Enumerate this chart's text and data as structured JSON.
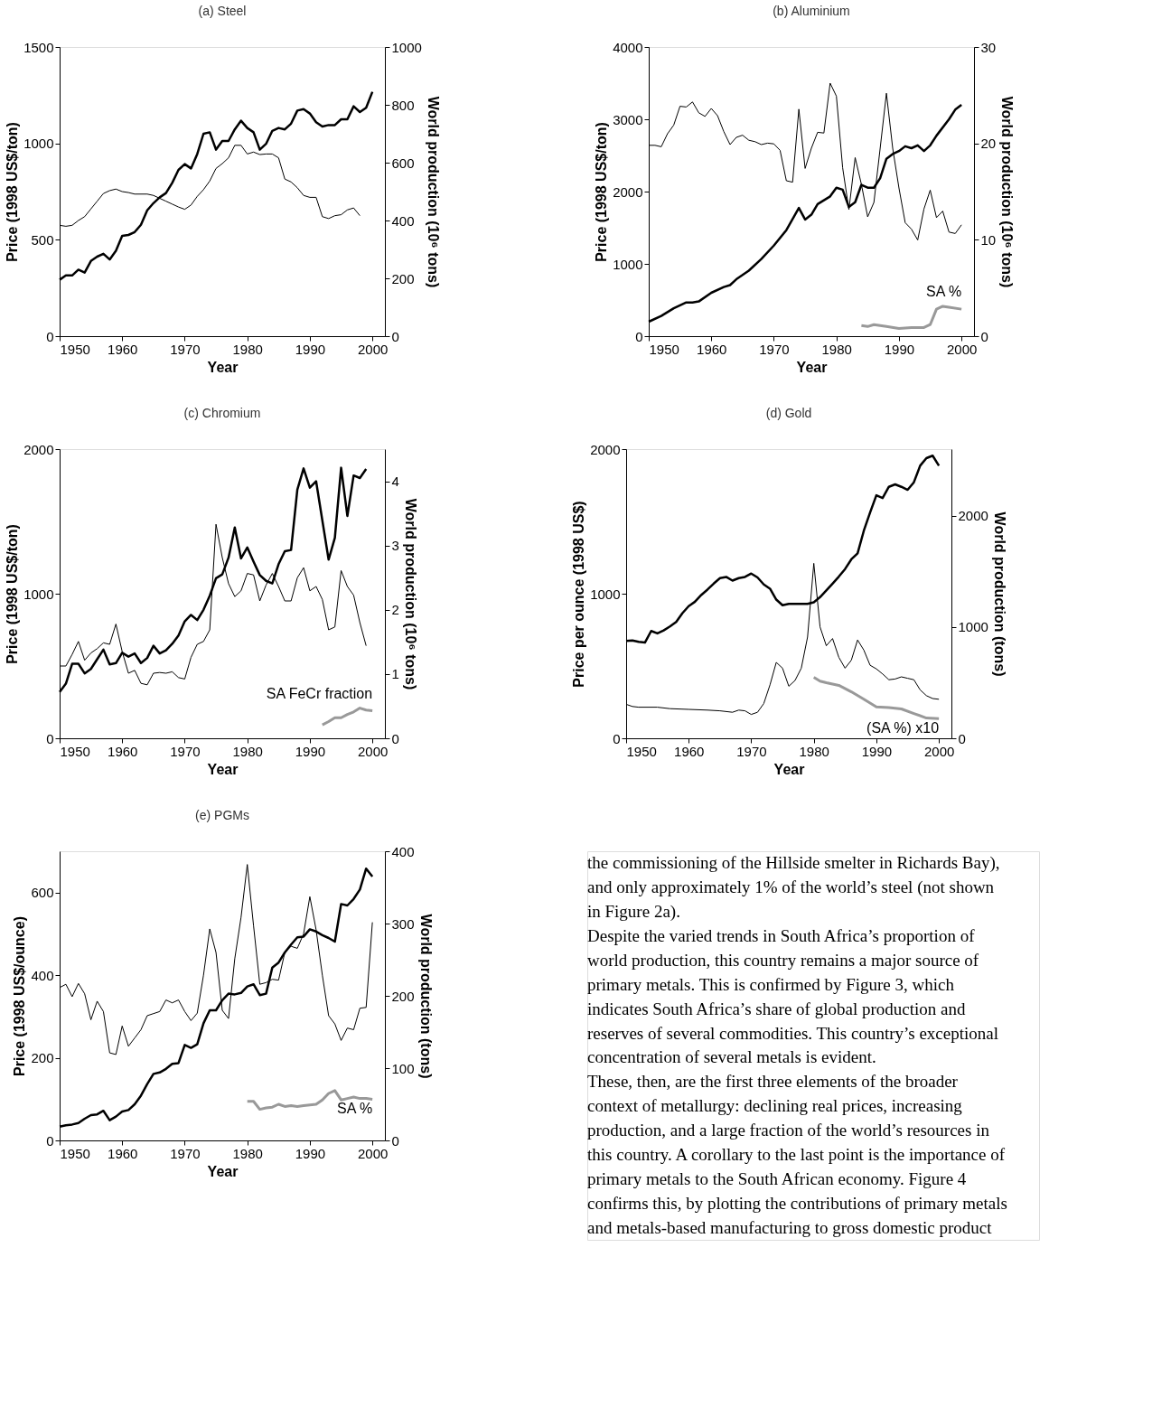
{
  "chart_data": [
    {
      "type": "line",
      "title": "(a) Steel",
      "xlabel": "Year",
      "ylabel": "Price (1998 US$/ton)",
      "y2label": "World production (10⁶ tons)",
      "xlim": [
        1950,
        2002
      ],
      "xticks": [
        1950,
        1960,
        1970,
        1980,
        1990,
        2000
      ],
      "ylim": [
        0,
        1500
      ],
      "yticks": [
        0,
        500,
        1000,
        1500
      ],
      "y2lim": [
        0,
        1000
      ],
      "y2ticks": [
        0,
        200,
        400,
        600,
        800,
        1000
      ],
      "series": [
        {
          "color": "#000000",
          "x": [
            1950,
            1951,
            1952,
            1953,
            1954,
            1955,
            1956,
            1957,
            1958,
            1959,
            1960,
            1961,
            1962,
            1963,
            1964,
            1965,
            1966,
            1967,
            1968,
            1969,
            1970,
            1971,
            1972,
            1973,
            1974,
            1975,
            1976,
            1977,
            1978,
            1979,
            1980,
            1981,
            1982,
            1983,
            1984,
            1985,
            1986,
            1987,
            1988,
            1989,
            1990,
            1991,
            1992,
            1993,
            1994,
            1995,
            1996,
            1997,
            1998
          ],
          "values": [
            575,
            570,
            575,
            600,
            620,
            660,
            700,
            740,
            755,
            763,
            750,
            745,
            737,
            737,
            737,
            730,
            715,
            700,
            685,
            670,
            658,
            680,
            725,
            760,
            805,
            870,
            895,
            925,
            990,
            990,
            945,
            955,
            942,
            945,
            945,
            925,
            815,
            800,
            770,
            730,
            720,
            720,
            620,
            610,
            625,
            630,
            655,
            665,
            625
          ]
        },
        {
          "color": "#000000",
          "axis": "y2",
          "x": [
            1950,
            1951,
            1952,
            1953,
            1954,
            1955,
            1956,
            1957,
            1958,
            1959,
            1960,
            1961,
            1962,
            1963,
            1964,
            1965,
            1966,
            1967,
            1968,
            1969,
            1970,
            1971,
            1972,
            1973,
            1974,
            1975,
            1976,
            1977,
            1978,
            1979,
            1980,
            1981,
            1982,
            1983,
            1984,
            1985,
            1986,
            1987,
            1988,
            1989,
            1990,
            1991,
            1992,
            1993,
            1994,
            1995,
            1996,
            1997,
            1998,
            1999,
            2000
          ],
          "values": [
            195,
            210,
            210,
            230,
            220,
            260,
            275,
            285,
            265,
            295,
            347,
            350,
            360,
            385,
            435,
            460,
            480,
            495,
            530,
            575,
            595,
            580,
            630,
            700,
            705,
            645,
            675,
            675,
            715,
            745,
            720,
            705,
            645,
            665,
            710,
            720,
            715,
            735,
            780,
            785,
            770,
            740,
            725,
            730,
            730,
            750,
            750,
            795,
            775,
            790,
            845
          ]
        }
      ]
    },
    {
      "type": "line",
      "title": "(b) Aluminium",
      "xlabel": "Year",
      "ylabel": "Price (1998 US$/ton)",
      "y2label": "World production (10⁶ tons)",
      "xlim": [
        1950,
        2002
      ],
      "xticks": [
        1950,
        1960,
        1970,
        1980,
        1990,
        2000
      ],
      "ylim": [
        0,
        4000
      ],
      "yticks": [
        0,
        1000,
        2000,
        3000,
        4000
      ],
      "y2lim": [
        0,
        30
      ],
      "y2ticks": [
        0,
        10,
        20,
        30
      ],
      "series": [
        {
          "color": "#000000",
          "x": [
            1950,
            1951,
            1952,
            1953,
            1954,
            1955,
            1956,
            1957,
            1958,
            1959,
            1960,
            1961,
            1962,
            1963,
            1964,
            1965,
            1966,
            1967,
            1968,
            1969,
            1970,
            1971,
            1972,
            1973,
            1974,
            1975,
            1976,
            1977,
            1978,
            1979,
            1980,
            1981,
            1982,
            1983,
            1984,
            1985,
            1986,
            1987,
            1988,
            1989,
            1990,
            1991,
            1992,
            1993,
            1994,
            1995,
            1996,
            1997,
            1998,
            1999,
            2000
          ],
          "values": [
            2640,
            2640,
            2620,
            2800,
            2920,
            3180,
            3170,
            3240,
            3090,
            3040,
            3150,
            3050,
            2830,
            2650,
            2750,
            2780,
            2710,
            2690,
            2650,
            2670,
            2660,
            2570,
            2150,
            2130,
            3140,
            2320,
            2600,
            2820,
            2810,
            3500,
            3320,
            2330,
            1750,
            2470,
            2100,
            1650,
            1850,
            2600,
            3360,
            2600,
            2050,
            1570,
            1480,
            1330,
            1760,
            2020,
            1640,
            1730,
            1440,
            1420,
            1540
          ]
        },
        {
          "color": "#000000",
          "axis": "y2",
          "x": [
            1950,
            1952,
            1954,
            1956,
            1957,
            1958,
            1960,
            1962,
            1963,
            1964,
            1966,
            1968,
            1970,
            1972,
            1974,
            1975,
            1976,
            1977,
            1978,
            1979,
            1980,
            1981,
            1982,
            1983,
            1984,
            1985,
            1986,
            1987,
            1988,
            1989,
            1990,
            1991,
            1992,
            1993,
            1994,
            1995,
            1996,
            1998,
            1999,
            2000
          ],
          "values": [
            1.5,
            2.1,
            2.9,
            3.5,
            3.5,
            3.6,
            4.5,
            5.1,
            5.3,
            5.9,
            6.8,
            8.0,
            9.4,
            11.0,
            13.3,
            12.1,
            12.6,
            13.7,
            14.1,
            14.5,
            15.4,
            15.2,
            13.4,
            13.9,
            15.7,
            15.4,
            15.4,
            16.4,
            18.4,
            18.9,
            19.2,
            19.7,
            19.5,
            19.8,
            19.2,
            19.8,
            20.8,
            22.5,
            23.5,
            24.0
          ]
        },
        {
          "name": "SA %",
          "color": "#999999",
          "axis": "y2",
          "x": [
            1984,
            1985,
            1986,
            1988,
            1990,
            1992,
            1994,
            1995,
            1996,
            1997,
            1998,
            2000
          ],
          "values": [
            1.1,
            1.0,
            1.2,
            1.0,
            0.8,
            0.9,
            0.9,
            1.2,
            2.8,
            3.1,
            3.0,
            2.8
          ]
        }
      ]
    },
    {
      "type": "line",
      "title": "(c) Chromium",
      "xlabel": "Year",
      "ylabel": "Price (1998 US$/ton)",
      "y2label": "World production (10⁶ tons)",
      "xlim": [
        1950,
        2002
      ],
      "xticks": [
        1950,
        1960,
        1970,
        1980,
        1990,
        2000
      ],
      "ylim": [
        0,
        2000
      ],
      "yticks": [
        0,
        1000,
        2000
      ],
      "y2lim": [
        0,
        4.5
      ],
      "y2ticks": [
        0,
        1,
        2,
        3,
        4
      ],
      "series": [
        {
          "color": "#000000",
          "x": [
            1950,
            1951,
            1952,
            1953,
            1954,
            1955,
            1956,
            1957,
            1958,
            1959,
            1960,
            1961,
            1962,
            1963,
            1964,
            1965,
            1966,
            1967,
            1968,
            1969,
            1970,
            1971,
            1972,
            1973,
            1974,
            1975,
            1976,
            1977,
            1978,
            1979,
            1980,
            1981,
            1982,
            1983,
            1984,
            1985,
            1986,
            1987,
            1988,
            1989,
            1990,
            1991,
            1992,
            1993,
            1994,
            1995,
            1996,
            1997,
            1998,
            1999
          ],
          "values": [
            500,
            500,
            580,
            670,
            540,
            590,
            620,
            660,
            650,
            790,
            600,
            450,
            470,
            380,
            370,
            450,
            455,
            450,
            460,
            420,
            410,
            560,
            650,
            670,
            750,
            1480,
            1250,
            1070,
            980,
            1020,
            1140,
            1130,
            950,
            1060,
            1140,
            1050,
            950,
            950,
            1110,
            1180,
            1020,
            1050,
            960,
            750,
            770,
            1160,
            1050,
            990,
            800,
            640
          ]
        },
        {
          "color": "#000000",
          "axis": "y2",
          "x": [
            1950,
            1951,
            1952,
            1953,
            1954,
            1955,
            1956,
            1957,
            1958,
            1959,
            1960,
            1961,
            1962,
            1963,
            1964,
            1965,
            1966,
            1967,
            1968,
            1969,
            1970,
            1971,
            1972,
            1973,
            1974,
            1975,
            1976,
            1977,
            1978,
            1979,
            1980,
            1981,
            1982,
            1983,
            1984,
            1985,
            1986,
            1987,
            1988,
            1989,
            1990,
            1991,
            1992,
            1993,
            1994,
            1995,
            1996,
            1997,
            1998,
            1999
          ],
          "values": [
            0.72,
            0.85,
            1.16,
            1.16,
            1.01,
            1.08,
            1.23,
            1.38,
            1.15,
            1.17,
            1.33,
            1.27,
            1.32,
            1.17,
            1.25,
            1.44,
            1.32,
            1.37,
            1.47,
            1.6,
            1.82,
            1.92,
            1.84,
            2.0,
            2.22,
            2.49,
            2.55,
            2.81,
            3.28,
            2.8,
            2.97,
            2.75,
            2.54,
            2.45,
            2.41,
            2.71,
            2.91,
            2.93,
            3.87,
            4.2,
            3.9,
            4.0,
            3.39,
            2.78,
            3.12,
            4.21,
            3.46,
            4.09,
            4.05,
            4.19
          ]
        },
        {
          "name": "SA FeCr fraction",
          "color": "#999999",
          "axis": "y2",
          "x": [
            1992,
            1993,
            1994,
            1995,
            1996,
            1997,
            1998,
            1999,
            2000
          ],
          "values": [
            0.21,
            0.26,
            0.32,
            0.32,
            0.37,
            0.41,
            0.47,
            0.44,
            0.43
          ]
        }
      ]
    },
    {
      "type": "line",
      "title": "(d) Gold",
      "xlabel": "Year",
      "ylabel": "Price per ounce (1998 US$)",
      "y2label": "World production (tons)",
      "xlim": [
        1950,
        2002
      ],
      "xticks": [
        1950,
        1960,
        1970,
        1980,
        1990,
        2000
      ],
      "ylim": [
        0,
        2000
      ],
      "yticks": [
        0,
        1000,
        2000
      ],
      "y2lim": [
        0,
        2600
      ],
      "y2ticks": [
        0,
        1000,
        2000
      ],
      "series": [
        {
          "color": "#000000",
          "x": [
            1950,
            1951,
            1952,
            1955,
            1957,
            1960,
            1963,
            1965,
            1967,
            1968,
            1969,
            1970,
            1971,
            1972,
            1973,
            1974,
            1975,
            1976,
            1977,
            1978,
            1979,
            1980,
            1981,
            1982,
            1983,
            1984,
            1985,
            1986,
            1987,
            1988,
            1989,
            1990,
            1991,
            1992,
            1993,
            1994,
            1995,
            1996,
            1997,
            1998,
            1999,
            2000
          ],
          "values": [
            235,
            220,
            215,
            215,
            205,
            200,
            195,
            190,
            180,
            195,
            190,
            165,
            180,
            240,
            370,
            525,
            485,
            360,
            400,
            485,
            700,
            1210,
            770,
            640,
            690,
            560,
            485,
            540,
            680,
            610,
            505,
            480,
            445,
            405,
            410,
            425,
            415,
            405,
            335,
            295,
            275,
            270
          ]
        },
        {
          "color": "#000000",
          "axis": "y2",
          "x": [
            1950,
            1951,
            1952,
            1953,
            1954,
            1955,
            1956,
            1957,
            1958,
            1959,
            1960,
            1961,
            1962,
            1963,
            1964,
            1965,
            1966,
            1967,
            1968,
            1969,
            1970,
            1971,
            1972,
            1973,
            1974,
            1975,
            1976,
            1977,
            1978,
            1979,
            1980,
            1981,
            1982,
            1983,
            1984,
            1985,
            1986,
            1987,
            1988,
            1989,
            1990,
            1991,
            1992,
            1993,
            1994,
            1995,
            1996,
            1997,
            1998,
            1999,
            2000
          ],
          "values": [
            875,
            880,
            867,
            861,
            965,
            943,
            970,
            1005,
            1046,
            1125,
            1188,
            1228,
            1288,
            1337,
            1391,
            1440,
            1451,
            1418,
            1440,
            1451,
            1481,
            1446,
            1383,
            1345,
            1247,
            1196,
            1209,
            1209,
            1209,
            1209,
            1223,
            1269,
            1329,
            1391,
            1454,
            1522,
            1609,
            1663,
            1867,
            2030,
            2185,
            2160,
            2261,
            2283,
            2261,
            2234,
            2302,
            2451,
            2519,
            2541,
            2451
          ]
        },
        {
          "name": "(SA %) x10",
          "color": "#999999",
          "axis": "y2",
          "x": [
            1980,
            1981,
            1982,
            1984,
            1986,
            1988,
            1990,
            1992,
            1994,
            1996,
            1998,
            2000
          ],
          "values": [
            549,
            514,
            500,
            476,
            418,
            351,
            283,
            277,
            264,
            223,
            182,
            177
          ]
        }
      ]
    },
    {
      "type": "line",
      "title": "(e) PGMs",
      "xlabel": "Year",
      "ylabel": "Price (1998 US$/ounce)",
      "y2label": "World production (tons)",
      "xlim": [
        1950,
        2002
      ],
      "xticks": [
        1950,
        1960,
        1970,
        1980,
        1990,
        2000
      ],
      "ylim": [
        0,
        700
      ],
      "yticks": [
        0,
        200,
        400,
        600
      ],
      "y2lim": [
        0,
        400
      ],
      "y2ticks": [
        0,
        100,
        200,
        300,
        400
      ],
      "series": [
        {
          "color": "#000000",
          "x": [
            1950,
            1951,
            1952,
            1953,
            1954,
            1955,
            1956,
            1957,
            1958,
            1959,
            1960,
            1961,
            1962,
            1963,
            1964,
            1965,
            1966,
            1967,
            1968,
            1969,
            1970,
            1971,
            1972,
            1973,
            1974,
            1975,
            1976,
            1977,
            1978,
            1979,
            1980,
            1981,
            1982,
            1983,
            1984,
            1985,
            1986,
            1987,
            1988,
            1989,
            1990,
            1991,
            1992,
            1993,
            1994,
            1995,
            1996,
            1997,
            1998,
            1999,
            2000
          ],
          "values": [
            370,
            378,
            348,
            380,
            355,
            292,
            337,
            312,
            212,
            208,
            277,
            228,
            248,
            268,
            302,
            307,
            312,
            340,
            333,
            340,
            312,
            290,
            308,
            400,
            512,
            455,
            315,
            295,
            440,
            540,
            668,
            520,
            378,
            382,
            390,
            388,
            455,
            470,
            465,
            500,
            590,
            510,
            400,
            302,
            282,
            242,
            272,
            268,
            320,
            322,
            528
          ]
        },
        {
          "color": "#000000",
          "axis": "y2",
          "x": [
            1950,
            1951,
            1952,
            1953,
            1954,
            1955,
            1956,
            1957,
            1958,
            1959,
            1960,
            1961,
            1962,
            1963,
            1964,
            1965,
            1966,
            1967,
            1968,
            1969,
            1970,
            1971,
            1972,
            1973,
            1974,
            1975,
            1976,
            1977,
            1978,
            1979,
            1980,
            1981,
            1982,
            1983,
            1984,
            1985,
            1986,
            1987,
            1988,
            1989,
            1990,
            1991,
            1992,
            1993,
            1994,
            1995,
            1996,
            1997,
            1998,
            1999,
            2000
          ],
          "values": [
            19,
            21,
            22,
            24,
            30,
            35,
            36,
            41,
            28,
            33,
            40,
            42,
            50,
            62,
            78,
            92,
            94,
            99,
            106,
            107,
            132,
            128,
            133,
            162,
            180,
            180,
            194,
            203,
            202,
            204,
            213,
            216,
            201,
            203,
            239,
            246,
            260,
            271,
            281,
            282,
            292,
            289,
            284,
            280,
            275,
            327,
            325,
            334,
            347,
            376,
            365
          ]
        },
        {
          "name": "SA %",
          "color": "#999999",
          "axis": "y2",
          "x": [
            1980,
            1981,
            1982,
            1983,
            1984,
            1985,
            1986,
            1987,
            1988,
            1989,
            1990,
            1991,
            1992,
            1993,
            1994,
            1995,
            1996,
            1997,
            1998,
            1999,
            2000
          ],
          "values": [
            54,
            54,
            43,
            45,
            46,
            50,
            47,
            48,
            47,
            48,
            49,
            50,
            56,
            65,
            69,
            56,
            58,
            60,
            58,
            58,
            57
          ]
        }
      ]
    },
    {
      "type": "other",
      "annotations": [
        "the commissioning of the Hillside smelter in Richards Bay),",
        "and only approximately 1% of the world’s steel (not shown",
        "in Figure 2a).",
        "    Despite the varied trends in South Africa’s proportion of",
        "world production, this country remains a major source of",
        "primary metals. This is confirmed by Figure 3, which",
        "indicates South Africa’s share of global production and",
        "reserves of several commodities. This country’s exceptional",
        "concentration of several metals is evident.",
        "    These, then, are the first three elements of the broader",
        "context of metallurgy: declining real prices, increasing",
        "production, and a large fraction of the world’s resources in",
        "this country. A corollary to the last point is the importance of",
        "primary metals to the South African economy. Figure 4",
        "confirms this, by plotting the contributions of primary metals",
        "and metals-based manufacturing to gross domestic product"
      ]
    }
  ]
}
